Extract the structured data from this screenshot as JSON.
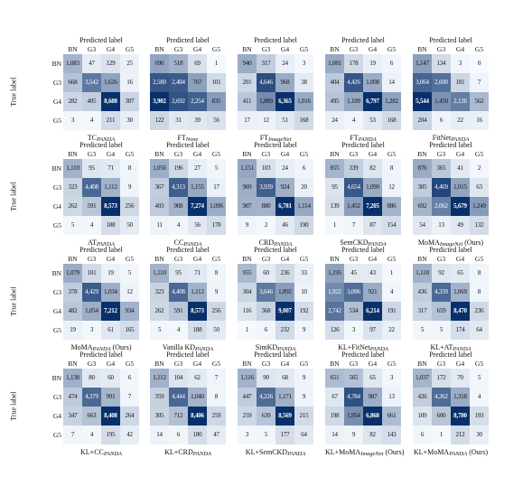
{
  "predicted_label": "Predicted label",
  "true_label": "True label",
  "class_labels": [
    "BN",
    "G3",
    "G4",
    "G5"
  ],
  "chart_data": [
    {
      "type": "heatmap",
      "caption_base": "TC",
      "caption_sub": "PANDA",
      "caption_suffix": "",
      "values": [
        [
          1083,
          47,
          129,
          25
        ],
        [
          668,
          3542,
          1626,
          16
        ],
        [
          282,
          405,
          8688,
          307
        ],
        [
          3,
          4,
          211,
          30
        ]
      ]
    },
    {
      "type": "heatmap",
      "caption_base": "FT",
      "caption_sub": "None",
      "caption_suffix": "",
      "values": [
        [
          696,
          518,
          69,
          1
        ],
        [
          2580,
          2404,
          767,
          101
        ],
        [
          3902,
          2692,
          2254,
          835
        ],
        [
          122,
          31,
          39,
          56
        ]
      ]
    },
    {
      "type": "heatmap",
      "caption_base": "FT",
      "caption_sub": "ImageNet",
      "caption_suffix": "",
      "values": [
        [
          940,
          317,
          24,
          3
        ],
        [
          201,
          4646,
          968,
          38
        ],
        [
          411,
          1889,
          6365,
          1016
        ],
        [
          17,
          12,
          51,
          168
        ]
      ]
    },
    {
      "type": "heatmap",
      "caption_base": "FT",
      "caption_sub": "PANDA",
      "caption_suffix": "",
      "values": [
        [
          1081,
          178,
          19,
          6
        ],
        [
          404,
          4426,
          1008,
          14
        ],
        [
          495,
          1109,
          6797,
          1282
        ],
        [
          24,
          4,
          53,
          168
        ]
      ]
    },
    {
      "type": "heatmap",
      "caption_base": "FitNet",
      "caption_sub": "PANDA",
      "caption_suffix": "",
      "values": [
        [
          1147,
          134,
          3,
          0
        ],
        [
          3064,
          2600,
          181,
          7
        ],
        [
          5544,
          1450,
          2126,
          562
        ],
        [
          204,
          6,
          22,
          16
        ]
      ]
    },
    {
      "type": "heatmap",
      "caption_base": "AT",
      "caption_sub": "PANDA",
      "caption_suffix": "",
      "values": [
        [
          1110,
          95,
          71,
          8
        ],
        [
          323,
          4408,
          1112,
          9
        ],
        [
          262,
          591,
          8573,
          256
        ],
        [
          5,
          4,
          188,
          50
        ]
      ]
    },
    {
      "type": "heatmap",
      "caption_base": "CC",
      "caption_sub": "PANDA",
      "caption_suffix": "",
      "values": [
        [
          1056,
          196,
          27,
          5
        ],
        [
          367,
          4313,
          1155,
          17
        ],
        [
          403,
          908,
          7274,
          1096
        ],
        [
          11,
          4,
          56,
          178
        ]
      ]
    },
    {
      "type": "heatmap",
      "caption_base": "CRD",
      "caption_sub": "PANDA",
      "caption_suffix": "",
      "values": [
        [
          1151,
          103,
          24,
          6
        ],
        [
          969,
          3939,
          924,
          20
        ],
        [
          907,
          880,
          6781,
          1114
        ],
        [
          9,
          2,
          46,
          190
        ]
      ]
    },
    {
      "type": "heatmap",
      "caption_base": "SemCKD",
      "caption_sub": "PANDA",
      "caption_suffix": "",
      "values": [
        [
          855,
          339,
          82,
          8
        ],
        [
          95,
          4654,
          1090,
          12
        ],
        [
          139,
          1452,
          7205,
          886
        ],
        [
          1,
          7,
          87,
          154
        ]
      ]
    },
    {
      "type": "heatmap",
      "caption_base": "MoMA",
      "caption_sub": "ImageNet",
      "caption_suffix": " (Ours)",
      "values": [
        [
          876,
          365,
          41,
          2
        ],
        [
          305,
          4469,
          1015,
          63
        ],
        [
          692,
          2062,
          5679,
          1249
        ],
        [
          54,
          13,
          49,
          132
        ]
      ]
    },
    {
      "type": "heatmap",
      "caption_base": "MoMA",
      "caption_sub": "PANDA",
      "caption_suffix": " (Ours)",
      "values": [
        [
          1079,
          181,
          19,
          5
        ],
        [
          378,
          4429,
          1034,
          12
        ],
        [
          482,
          1054,
          7212,
          934
        ],
        [
          19,
          3,
          61,
          165
        ]
      ]
    },
    {
      "type": "heatmap",
      "caption_base": "Vanilla KD",
      "caption_sub": "PANDA",
      "caption_suffix": "",
      "values": [
        [
          1110,
          95,
          71,
          8
        ],
        [
          323,
          4408,
          1112,
          9
        ],
        [
          262,
          591,
          8573,
          256
        ],
        [
          5,
          4,
          188,
          50
        ]
      ]
    },
    {
      "type": "heatmap",
      "caption_base": "SimKD",
      "caption_sub": "PANDA",
      "caption_suffix": "",
      "values": [
        [
          955,
          60,
          236,
          33
        ],
        [
          304,
          3646,
          1892,
          10
        ],
        [
          116,
          368,
          9007,
          192
        ],
        [
          1,
          6,
          232,
          9
        ]
      ]
    },
    {
      "type": "heatmap",
      "caption_base": "KL+FitNet",
      "caption_sub": "PANDA",
      "caption_suffix": "",
      "values": [
        [
          1195,
          45,
          43,
          1
        ],
        [
          1922,
          3006,
          921,
          4
        ],
        [
          2742,
          534,
          6214,
          191
        ],
        [
          126,
          3,
          97,
          22
        ]
      ]
    },
    {
      "type": "heatmap",
      "caption_base": "KL+AT",
      "caption_sub": "PANDA",
      "caption_suffix": "",
      "values": [
        [
          1118,
          92,
          65,
          8
        ],
        [
          436,
          4339,
          1069,
          8
        ],
        [
          317,
          659,
          8470,
          236
        ],
        [
          5,
          5,
          174,
          64
        ]
      ]
    },
    {
      "type": "heatmap",
      "caption_base": "KL+CC",
      "caption_sub": "PANDA",
      "caption_suffix": "",
      "values": [
        [
          1138,
          80,
          60,
          6
        ],
        [
          474,
          4379,
          991,
          7
        ],
        [
          347,
          663,
          8408,
          264
        ],
        [
          7,
          4,
          195,
          42
        ]
      ]
    },
    {
      "type": "heatmap",
      "caption_base": "KL+CRD",
      "caption_sub": "PANDA",
      "caption_suffix": "",
      "values": [
        [
          1112,
          104,
          62,
          7
        ],
        [
          359,
          4444,
          1040,
          8
        ],
        [
          305,
          712,
          8406,
          259
        ],
        [
          14,
          6,
          180,
          47
        ]
      ]
    },
    {
      "type": "heatmap",
      "caption_base": "KL+SemCKD",
      "caption_sub": "PANDA",
      "caption_suffix": "",
      "values": [
        [
          1116,
          90,
          68,
          9
        ],
        [
          447,
          4226,
          1171,
          9
        ],
        [
          259,
          639,
          8569,
          215
        ],
        [
          3,
          5,
          177,
          64
        ]
      ]
    },
    {
      "type": "heatmap",
      "caption_base": "KL+MoMA",
      "caption_sub": "ImageNet",
      "caption_suffix": " (Ours)",
      "values": [
        [
          651,
          565,
          65,
          3
        ],
        [
          67,
          4784,
          987,
          13
        ],
        [
          198,
          1954,
          6868,
          661
        ],
        [
          14,
          9,
          82,
          143
        ]
      ]
    },
    {
      "type": "heatmap",
      "caption_base": "KL+MoMA",
      "caption_sub": "PANDA",
      "caption_suffix": " (Ours)",
      "values": [
        [
          1037,
          172,
          70,
          5
        ],
        [
          426,
          4362,
          1318,
          4
        ],
        [
          109,
          600,
          8780,
          193
        ],
        [
          6,
          1,
          212,
          30
        ]
      ]
    }
  ]
}
